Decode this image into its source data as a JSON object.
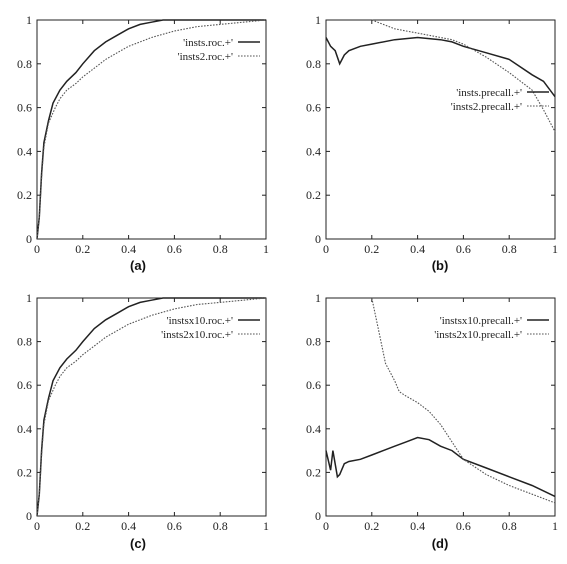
{
  "chart_data": [
    {
      "type": "line",
      "caption": "(a)",
      "xlim": [
        0,
        1
      ],
      "ylim": [
        0,
        1
      ],
      "xticks": [
        "0",
        "0.2",
        "0.4",
        "0.6",
        "0.8",
        "1"
      ],
      "yticks": [
        "0",
        "0.2",
        "0.4",
        "0.6",
        "0.8",
        "1"
      ],
      "legend_position": "top-right",
      "series": [
        {
          "name": "'insts.roc.+'",
          "style": "solid",
          "color": "#222222",
          "x": [
            0,
            0.01,
            0.02,
            0.03,
            0.05,
            0.07,
            0.1,
            0.13,
            0.17,
            0.2,
            0.25,
            0.3,
            0.35,
            0.4,
            0.45,
            0.5,
            0.55,
            0.6,
            0.7,
            0.8,
            0.9,
            1.0
          ],
          "y": [
            0,
            0.1,
            0.3,
            0.44,
            0.54,
            0.62,
            0.68,
            0.72,
            0.76,
            0.8,
            0.86,
            0.9,
            0.93,
            0.96,
            0.98,
            0.99,
            1.0,
            1.0,
            1.0,
            1.0,
            1.0,
            1.0
          ]
        },
        {
          "name": "'insts2.roc.+'",
          "style": "dotted",
          "color": "#555555",
          "x": [
            0,
            0.01,
            0.02,
            0.03,
            0.05,
            0.08,
            0.1,
            0.13,
            0.17,
            0.2,
            0.25,
            0.3,
            0.35,
            0.4,
            0.45,
            0.5,
            0.6,
            0.7,
            0.8,
            0.9,
            1.0
          ],
          "y": [
            0,
            0.1,
            0.28,
            0.42,
            0.53,
            0.6,
            0.64,
            0.68,
            0.71,
            0.74,
            0.78,
            0.82,
            0.85,
            0.88,
            0.9,
            0.92,
            0.95,
            0.97,
            0.98,
            0.99,
            1.0
          ]
        }
      ]
    },
    {
      "type": "line",
      "caption": "(b)",
      "xlim": [
        0,
        1
      ],
      "ylim": [
        0,
        1
      ],
      "xticks": [
        "0",
        "0.2",
        "0.4",
        "0.6",
        "0.8",
        "1"
      ],
      "yticks": [
        "0",
        "0.2",
        "0.4",
        "0.6",
        "0.8",
        "1"
      ],
      "legend_position": "center-right",
      "series": [
        {
          "name": "'insts.precall.+'",
          "style": "solid",
          "color": "#222222",
          "x": [
            0.0,
            0.02,
            0.04,
            0.06,
            0.08,
            0.1,
            0.15,
            0.2,
            0.3,
            0.4,
            0.5,
            0.55,
            0.6,
            0.7,
            0.8,
            0.9,
            0.95,
            1.0
          ],
          "y": [
            0.92,
            0.88,
            0.86,
            0.8,
            0.84,
            0.86,
            0.88,
            0.89,
            0.91,
            0.92,
            0.91,
            0.9,
            0.88,
            0.85,
            0.82,
            0.75,
            0.72,
            0.65
          ]
        },
        {
          "name": "'insts2.precall.+'",
          "style": "dotted",
          "color": "#555555",
          "x": [
            0.2,
            0.25,
            0.3,
            0.35,
            0.4,
            0.45,
            0.5,
            0.55,
            0.6,
            0.7,
            0.8,
            0.9,
            0.95,
            1.0
          ],
          "y": [
            1.0,
            0.98,
            0.96,
            0.95,
            0.94,
            0.93,
            0.92,
            0.91,
            0.89,
            0.83,
            0.76,
            0.68,
            0.59,
            0.49
          ]
        }
      ]
    },
    {
      "type": "line",
      "caption": "(c)",
      "xlim": [
        0,
        1
      ],
      "ylim": [
        0,
        1
      ],
      "xticks": [
        "0",
        "0.2",
        "0.4",
        "0.6",
        "0.8",
        "1"
      ],
      "yticks": [
        "0",
        "0.2",
        "0.4",
        "0.6",
        "0.8",
        "1"
      ],
      "legend_position": "top-right",
      "series": [
        {
          "name": "'instsx10.roc.+'",
          "style": "solid",
          "color": "#222222",
          "x": [
            0,
            0.01,
            0.02,
            0.03,
            0.05,
            0.07,
            0.1,
            0.13,
            0.17,
            0.2,
            0.25,
            0.3,
            0.35,
            0.4,
            0.45,
            0.5,
            0.55,
            0.6,
            0.7,
            0.8,
            0.9,
            1.0
          ],
          "y": [
            0,
            0.1,
            0.3,
            0.44,
            0.54,
            0.62,
            0.68,
            0.72,
            0.76,
            0.8,
            0.86,
            0.9,
            0.93,
            0.96,
            0.98,
            0.99,
            1.0,
            1.0,
            1.0,
            1.0,
            1.0,
            1.0
          ]
        },
        {
          "name": "'insts2x10.roc.+'",
          "style": "dotted",
          "color": "#555555",
          "x": [
            0,
            0.01,
            0.02,
            0.03,
            0.05,
            0.08,
            0.1,
            0.13,
            0.17,
            0.2,
            0.25,
            0.3,
            0.35,
            0.4,
            0.45,
            0.5,
            0.6,
            0.7,
            0.8,
            0.9,
            1.0
          ],
          "y": [
            0,
            0.1,
            0.28,
            0.42,
            0.53,
            0.6,
            0.64,
            0.68,
            0.71,
            0.74,
            0.78,
            0.82,
            0.85,
            0.88,
            0.9,
            0.92,
            0.95,
            0.97,
            0.98,
            0.99,
            1.0
          ]
        }
      ]
    },
    {
      "type": "line",
      "caption": "(d)",
      "xlim": [
        0,
        1
      ],
      "ylim": [
        0,
        1
      ],
      "xticks": [
        "0",
        "0.2",
        "0.4",
        "0.6",
        "0.8",
        "1"
      ],
      "yticks": [
        "0",
        "0.2",
        "0.4",
        "0.6",
        "0.8",
        "1"
      ],
      "legend_position": "top-right",
      "series": [
        {
          "name": "'instsx10.precall.+'",
          "style": "solid",
          "color": "#222222",
          "x": [
            0.0,
            0.02,
            0.03,
            0.05,
            0.06,
            0.08,
            0.1,
            0.15,
            0.2,
            0.25,
            0.3,
            0.35,
            0.4,
            0.45,
            0.5,
            0.55,
            0.6,
            0.7,
            0.8,
            0.9,
            1.0
          ],
          "y": [
            0.3,
            0.21,
            0.3,
            0.18,
            0.19,
            0.24,
            0.25,
            0.26,
            0.28,
            0.3,
            0.32,
            0.34,
            0.36,
            0.35,
            0.32,
            0.3,
            0.26,
            0.22,
            0.18,
            0.14,
            0.09
          ]
        },
        {
          "name": "'insts2x10.precall.+'",
          "style": "dotted",
          "color": "#555555",
          "x": [
            0.2,
            0.23,
            0.26,
            0.3,
            0.32,
            0.35,
            0.4,
            0.45,
            0.5,
            0.55,
            0.6,
            0.7,
            0.8,
            0.9,
            1.0
          ],
          "y": [
            1.0,
            0.85,
            0.7,
            0.62,
            0.57,
            0.55,
            0.52,
            0.48,
            0.42,
            0.34,
            0.26,
            0.19,
            0.14,
            0.1,
            0.06
          ]
        }
      ]
    }
  ]
}
